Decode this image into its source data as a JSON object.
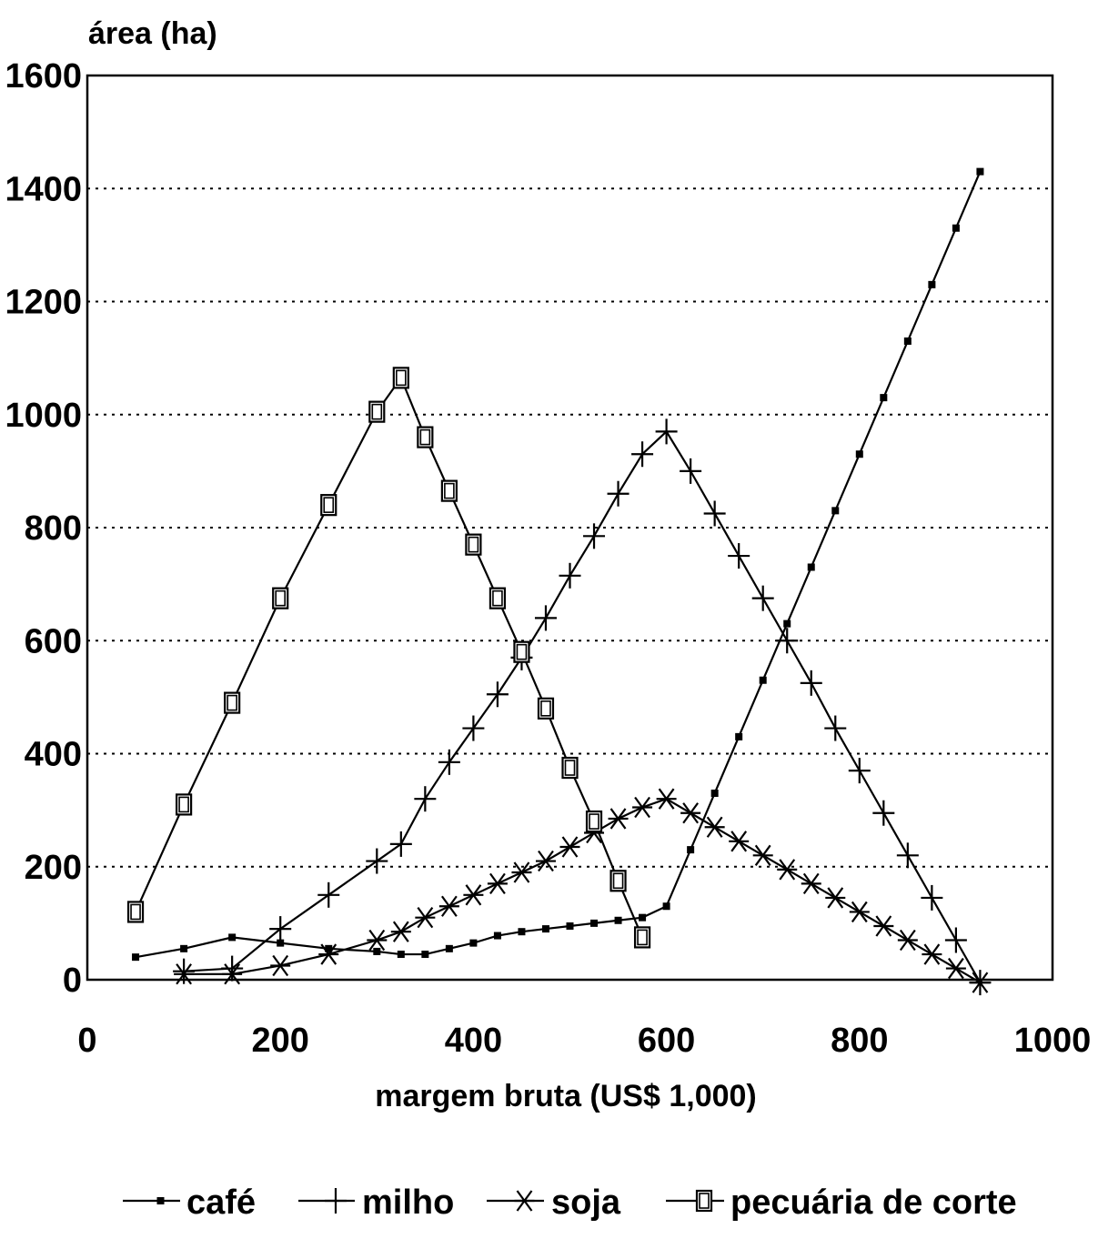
{
  "chart_data": {
    "type": "line",
    "ylabel": "área (ha)",
    "xlabel": "margem bruta (US$ 1,000)",
    "xlim": [
      0,
      1000
    ],
    "ylim": [
      0,
      1600
    ],
    "xticks": [
      "0",
      "200",
      "400",
      "600",
      "800",
      "1000"
    ],
    "yticks": [
      "0",
      "200",
      "400",
      "600",
      "800",
      "1000",
      "1200",
      "1400",
      "1600"
    ],
    "grid": "horizontal dotted",
    "legend": "bottom",
    "series": [
      {
        "name": "café",
        "marker": "small-filled-square",
        "points": [
          [
            50,
            40
          ],
          [
            100,
            55
          ],
          [
            150,
            75
          ],
          [
            200,
            65
          ],
          [
            250,
            55
          ],
          [
            300,
            50
          ],
          [
            325,
            45
          ],
          [
            350,
            45
          ],
          [
            375,
            55
          ],
          [
            400,
            65
          ],
          [
            425,
            78
          ],
          [
            450,
            85
          ],
          [
            475,
            90
          ],
          [
            500,
            95
          ],
          [
            525,
            100
          ],
          [
            550,
            105
          ],
          [
            575,
            110
          ],
          [
            600,
            130
          ],
          [
            625,
            230
          ],
          [
            650,
            330
          ],
          [
            675,
            430
          ],
          [
            700,
            530
          ],
          [
            725,
            630
          ],
          [
            750,
            730
          ],
          [
            775,
            830
          ],
          [
            800,
            930
          ],
          [
            825,
            1030
          ],
          [
            850,
            1130
          ],
          [
            875,
            1230
          ],
          [
            900,
            1330
          ],
          [
            925,
            1430
          ]
        ]
      },
      {
        "name": "milho",
        "marker": "plus",
        "points": [
          [
            100,
            15
          ],
          [
            150,
            20
          ],
          [
            200,
            90
          ],
          [
            250,
            150
          ],
          [
            300,
            210
          ],
          [
            325,
            240
          ],
          [
            350,
            320
          ],
          [
            375,
            385
          ],
          [
            400,
            445
          ],
          [
            425,
            505
          ],
          [
            450,
            570
          ],
          [
            475,
            640
          ],
          [
            500,
            715
          ],
          [
            525,
            785
          ],
          [
            550,
            860
          ],
          [
            575,
            930
          ],
          [
            600,
            970
          ],
          [
            625,
            900
          ],
          [
            650,
            825
          ],
          [
            675,
            750
          ],
          [
            700,
            675
          ],
          [
            725,
            600
          ],
          [
            750,
            525
          ],
          [
            775,
            445
          ],
          [
            800,
            370
          ],
          [
            825,
            295
          ],
          [
            850,
            220
          ],
          [
            875,
            145
          ],
          [
            900,
            70
          ],
          [
            925,
            -5
          ]
        ]
      },
      {
        "name": "soja",
        "marker": "asterisk",
        "points": [
          [
            100,
            10
          ],
          [
            150,
            10
          ],
          [
            200,
            25
          ],
          [
            250,
            45
          ],
          [
            300,
            70
          ],
          [
            325,
            85
          ],
          [
            350,
            110
          ],
          [
            375,
            130
          ],
          [
            400,
            150
          ],
          [
            425,
            170
          ],
          [
            450,
            190
          ],
          [
            475,
            210
          ],
          [
            500,
            235
          ],
          [
            525,
            260
          ],
          [
            550,
            285
          ],
          [
            575,
            305
          ],
          [
            600,
            320
          ],
          [
            625,
            295
          ],
          [
            650,
            270
          ],
          [
            675,
            245
          ],
          [
            700,
            220
          ],
          [
            725,
            195
          ],
          [
            750,
            170
          ],
          [
            775,
            145
          ],
          [
            800,
            120
          ],
          [
            825,
            95
          ],
          [
            850,
            70
          ],
          [
            875,
            45
          ],
          [
            900,
            20
          ],
          [
            925,
            -5
          ]
        ]
      },
      {
        "name": "pecuária de corte",
        "marker": "open-square",
        "points": [
          [
            50,
            120
          ],
          [
            100,
            310
          ],
          [
            150,
            490
          ],
          [
            200,
            675
          ],
          [
            250,
            840
          ],
          [
            300,
            1005
          ],
          [
            325,
            1065
          ],
          [
            350,
            960
          ],
          [
            375,
            865
          ],
          [
            400,
            770
          ],
          [
            425,
            675
          ],
          [
            450,
            580
          ],
          [
            475,
            480
          ],
          [
            500,
            375
          ],
          [
            525,
            280
          ],
          [
            550,
            175
          ],
          [
            575,
            75
          ]
        ]
      }
    ]
  }
}
